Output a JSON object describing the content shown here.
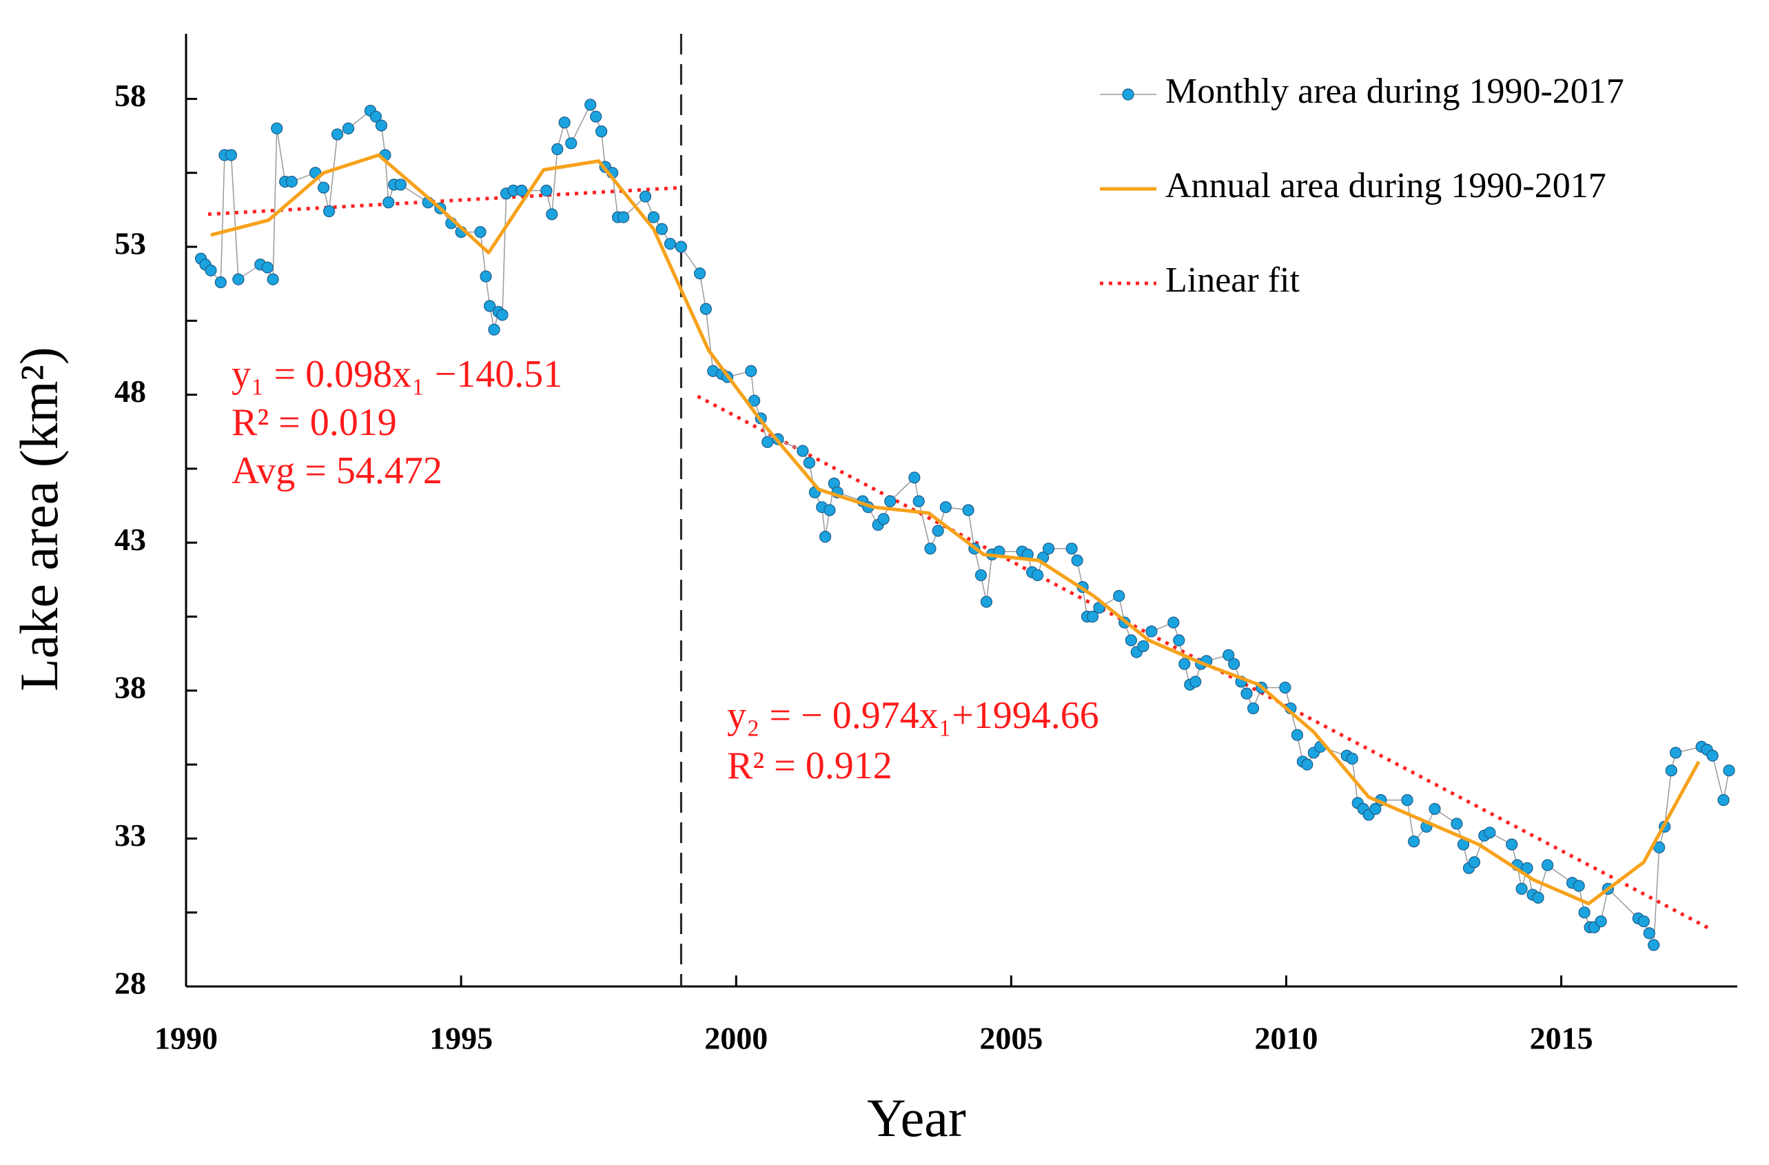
{
  "chart_data": {
    "type": "line",
    "xlabel": "Year",
    "ylabel": "Lake area (km²)",
    "xlim": [
      1990,
      2018.2
    ],
    "xticks": [
      1990,
      1995,
      2000,
      2005,
      2010,
      2015
    ],
    "ylim": [
      28,
      60.2
    ],
    "yticks": [
      28,
      33,
      38,
      43,
      48,
      53,
      58
    ],
    "yminorticks": [
      30.5,
      35.5,
      40.5,
      45.5,
      50.5,
      55.5
    ],
    "vline": 1999,
    "legend": "upper right",
    "series": [
      {
        "name": "Monthly area during 1990-2017",
        "color": "#1ba3df",
        "style": "markers",
        "x": [
          1990.27,
          1990.35,
          1990.45,
          1990.63,
          1990.7,
          1990.82,
          1990.95,
          1991.35,
          1991.48,
          1991.58,
          1991.65,
          1991.8,
          1991.92,
          1992.35,
          1992.5,
          1992.6,
          1992.75,
          1992.95,
          1993.35,
          1993.45,
          1993.55,
          1993.62,
          1993.68,
          1993.78,
          1993.9,
          1994.4,
          1994.62,
          1994.82,
          1995.0,
          1995.35,
          1995.45,
          1995.52,
          1995.6,
          1995.68,
          1995.75,
          1995.82,
          1995.95,
          1996.1,
          1996.55,
          1996.65,
          1996.75,
          1996.88,
          1997.0,
          1997.35,
          1997.45,
          1997.55,
          1997.62,
          1997.75,
          1997.85,
          1997.95,
          1998.35,
          1998.5,
          1998.65,
          1998.8,
          1999.0,
          1999.34,
          1999.45,
          1999.58,
          1999.74,
          1999.84,
          2000.27,
          2000.33,
          2000.45,
          2000.57,
          2000.76,
          2001.21,
          2001.33,
          2001.43,
          2001.56,
          2001.62,
          2001.7,
          2001.78,
          2001.84,
          2002.3,
          2002.4,
          2002.58,
          2002.68,
          2002.8,
          2003.24,
          2003.32,
          2003.53,
          2003.67,
          2003.81,
          2004.22,
          2004.33,
          2004.45,
          2004.55,
          2004.65,
          2004.78,
          2005.2,
          2005.3,
          2005.38,
          2005.48,
          2005.58,
          2005.68,
          2006.1,
          2006.2,
          2006.3,
          2006.38,
          2006.48,
          2006.6,
          2006.96,
          2007.06,
          2007.18,
          2007.28,
          2007.4,
          2007.55,
          2007.95,
          2008.05,
          2008.15,
          2008.25,
          2008.35,
          2008.45,
          2008.55,
          2008.95,
          2009.05,
          2009.18,
          2009.28,
          2009.4,
          2009.55,
          2009.98,
          2010.08,
          2010.2,
          2010.3,
          2010.38,
          2010.5,
          2010.62,
          2011.1,
          2011.2,
          2011.3,
          2011.4,
          2011.5,
          2011.62,
          2011.72,
          2012.2,
          2012.32,
          2012.55,
          2012.7,
          2013.1,
          2013.22,
          2013.32,
          2013.42,
          2013.6,
          2013.7,
          2014.1,
          2014.2,
          2014.28,
          2014.38,
          2014.48,
          2014.58,
          2014.75,
          2015.2,
          2015.32,
          2015.42,
          2015.52,
          2015.6,
          2015.72,
          2015.85,
          2016.4,
          2016.5,
          2016.6,
          2016.68,
          2016.78,
          2016.88,
          2017.0,
          2017.08,
          2017.55,
          2017.65,
          2017.75,
          2017.95,
          2018.05
        ],
        "values": [
          52.6,
          52.4,
          52.2,
          51.8,
          56.1,
          56.1,
          51.9,
          52.4,
          52.3,
          51.9,
          57.0,
          55.2,
          55.2,
          55.5,
          55.0,
          54.2,
          56.8,
          57.0,
          57.6,
          57.4,
          57.1,
          56.1,
          54.5,
          55.1,
          55.1,
          54.5,
          54.3,
          53.8,
          53.5,
          53.5,
          52.0,
          51.0,
          50.2,
          50.8,
          50.7,
          54.8,
          54.9,
          54.9,
          54.9,
          54.1,
          56.3,
          57.2,
          56.5,
          57.8,
          57.4,
          56.9,
          55.7,
          55.5,
          54.0,
          54.0,
          54.7,
          54.0,
          53.6,
          53.1,
          53.0,
          52.1,
          50.9,
          48.8,
          48.7,
          48.6,
          48.8,
          47.8,
          47.2,
          46.4,
          46.5,
          46.1,
          45.7,
          44.7,
          44.2,
          43.2,
          44.1,
          45.0,
          44.7,
          44.4,
          44.2,
          43.6,
          43.8,
          44.4,
          45.2,
          44.4,
          42.8,
          43.4,
          44.2,
          44.1,
          42.8,
          41.9,
          41.0,
          42.6,
          42.7,
          42.7,
          42.6,
          42.0,
          41.9,
          42.5,
          42.8,
          42.8,
          42.4,
          41.5,
          40.5,
          40.5,
          40.8,
          41.2,
          40.3,
          39.7,
          39.3,
          39.5,
          40.0,
          40.3,
          39.7,
          38.9,
          38.2,
          38.3,
          38.9,
          39.0,
          39.2,
          38.9,
          38.3,
          37.9,
          37.4,
          38.1,
          38.1,
          37.4,
          36.5,
          35.6,
          35.5,
          35.9,
          36.1,
          35.8,
          35.7,
          34.2,
          34.0,
          33.8,
          34.0,
          34.3,
          34.3,
          32.9,
          33.4,
          34.0,
          33.5,
          32.8,
          32.0,
          32.2,
          33.1,
          33.2,
          32.8,
          32.1,
          31.3,
          32.0,
          31.1,
          31.0,
          32.1,
          31.5,
          31.4,
          30.5,
          30.0,
          30.0,
          30.2,
          31.3,
          30.3,
          30.2,
          29.8,
          29.4,
          32.7,
          33.4,
          35.3,
          35.9,
          36.1,
          36.0,
          35.8,
          34.3,
          35.3
        ]
      },
      {
        "name": "Annual area during 1990-2017",
        "color": "#f7a21b",
        "style": "line",
        "x": [
          1990.45,
          1991.5,
          1992.5,
          1993.5,
          1994.5,
          1995.5,
          1996.5,
          1997.5,
          1998.5,
          1999.5,
          2000.5,
          2001.5,
          2002.5,
          2003.5,
          2004.5,
          2005.5,
          2006.5,
          2007.5,
          2008.5,
          2009.5,
          2010.5,
          2011.5,
          2012.5,
          2013.5,
          2014.5,
          2015.5,
          2016.5,
          2017.5
        ],
        "values": [
          53.4,
          53.9,
          55.5,
          56.1,
          54.5,
          52.8,
          55.6,
          55.9,
          53.6,
          49.5,
          47.0,
          44.8,
          44.2,
          44.0,
          42.6,
          42.4,
          41.2,
          39.7,
          38.9,
          38.2,
          36.6,
          34.4,
          33.6,
          32.8,
          31.6,
          30.8,
          32.2,
          35.6
        ]
      },
      {
        "name": "Linear fit",
        "color": "#ff2020",
        "style": "dotted",
        "x": [
          1990.4,
          1999.0,
          null,
          1999.3,
          2017.7
        ],
        "values": [
          54.1,
          55.0,
          null,
          47.95,
          29.95
        ]
      }
    ],
    "annotations": [
      [
        "y₁ = 0.098x₁ −140.51",
        "R² = 0.019",
        "Avg = 54.472"
      ],
      [
        "y₂ = − 0.974x₁+1994.66",
        "R² = 0.912"
      ]
    ]
  }
}
